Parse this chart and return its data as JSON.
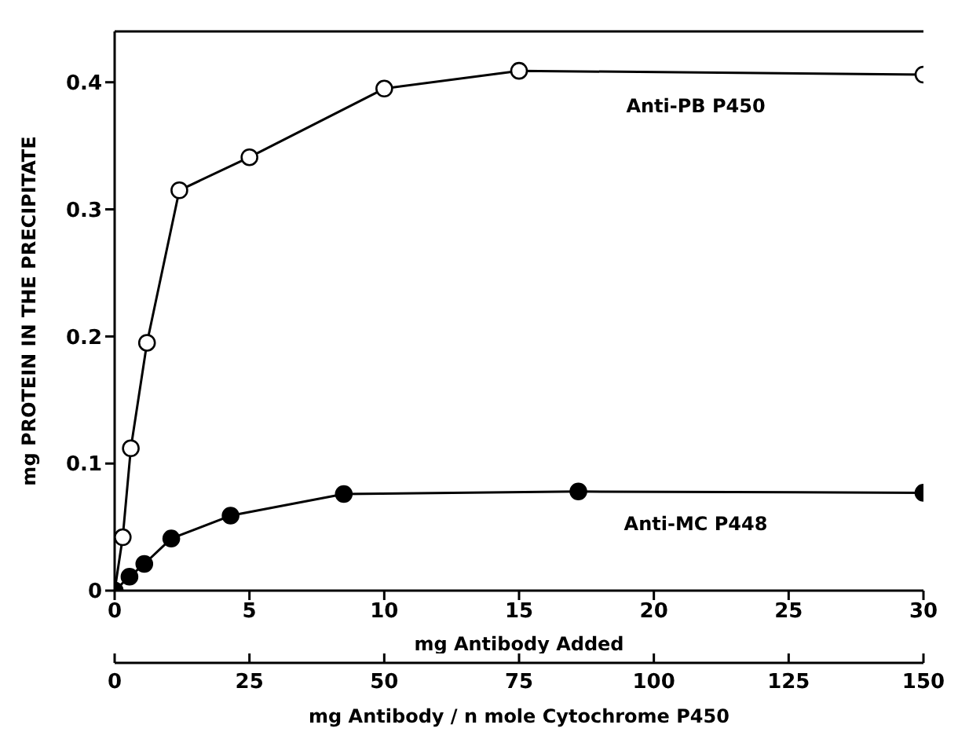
{
  "chart_data": {
    "type": "line",
    "xlabel": "mg Antibody Added",
    "x2label": "mg Antibody / n mole Cytochrome P450",
    "ylabel": "mg PROTEIN IN THE PRECIPITATE",
    "xlim": [
      0,
      30
    ],
    "xticks": [
      0,
      5,
      10,
      15,
      20,
      25,
      30
    ],
    "x2lim": [
      0,
      150
    ],
    "x2ticks": [
      0,
      25,
      50,
      75,
      100,
      125,
      150
    ],
    "ylim": [
      0,
      0.44
    ],
    "yticks": [
      0,
      0.1,
      0.2,
      0.3,
      0.4
    ],
    "grid": false,
    "legend": false,
    "marker": "circle",
    "line_style": "solid",
    "series": [
      {
        "name": "Anti-PB P450",
        "color": "#000000",
        "x": [
          0,
          0.3,
          0.6,
          1.2,
          2.4,
          5,
          10,
          15,
          30
        ],
        "values": [
          0,
          0.042,
          0.112,
          0.195,
          0.315,
          0.341,
          0.395,
          0.409,
          0.406
        ]
      },
      {
        "name": "Anti-MC P448",
        "color": "#000000",
        "x": [
          0,
          0.55,
          1.1,
          2.1,
          4.3,
          8.5,
          17.2,
          30
        ],
        "values": [
          0,
          0.011,
          0.021,
          0.041,
          0.059,
          0.076,
          0.078,
          0.077
        ]
      }
    ]
  }
}
